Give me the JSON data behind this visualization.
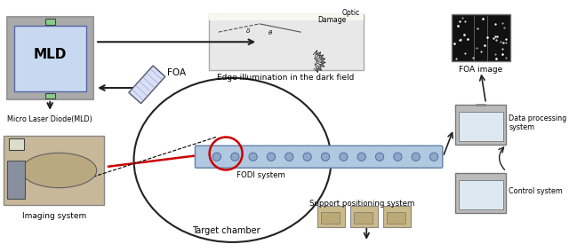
{
  "bg_color": "#ffffff",
  "labels": {
    "mld": "MLD",
    "mld_full": "Micro Laser Diode(MLD)",
    "foa": "FOA",
    "edge_illumination": "Edge illumination in the dark field",
    "damage": "Damage",
    "optic": "Optic",
    "foa_image": "FOA image",
    "imaging_system": "Imaging system",
    "target_chamber": "Target chamber",
    "fodi_system": "FODI system",
    "support_positioning": "Support positioning system",
    "data_processing": "Data processing\nsystem",
    "control_system": "Control system"
  },
  "colors": {
    "mld_box_fill": "#c8d8f0",
    "mld_box_edge": "#888888",
    "dark_field_fill": "#e8e8e8",
    "foa_image_fill": "#111111",
    "circle_edge": "#222222",
    "red_circle": "#cc0000",
    "red_arrow": "#cc0000",
    "arrow_color": "#222222",
    "computer_fill": "#bbbbbb",
    "imaging_fill": "#c8b89a",
    "fodi_fill": "#b0c8e0",
    "support_fill": "#ccbb88",
    "outer_frame": "#999999"
  }
}
